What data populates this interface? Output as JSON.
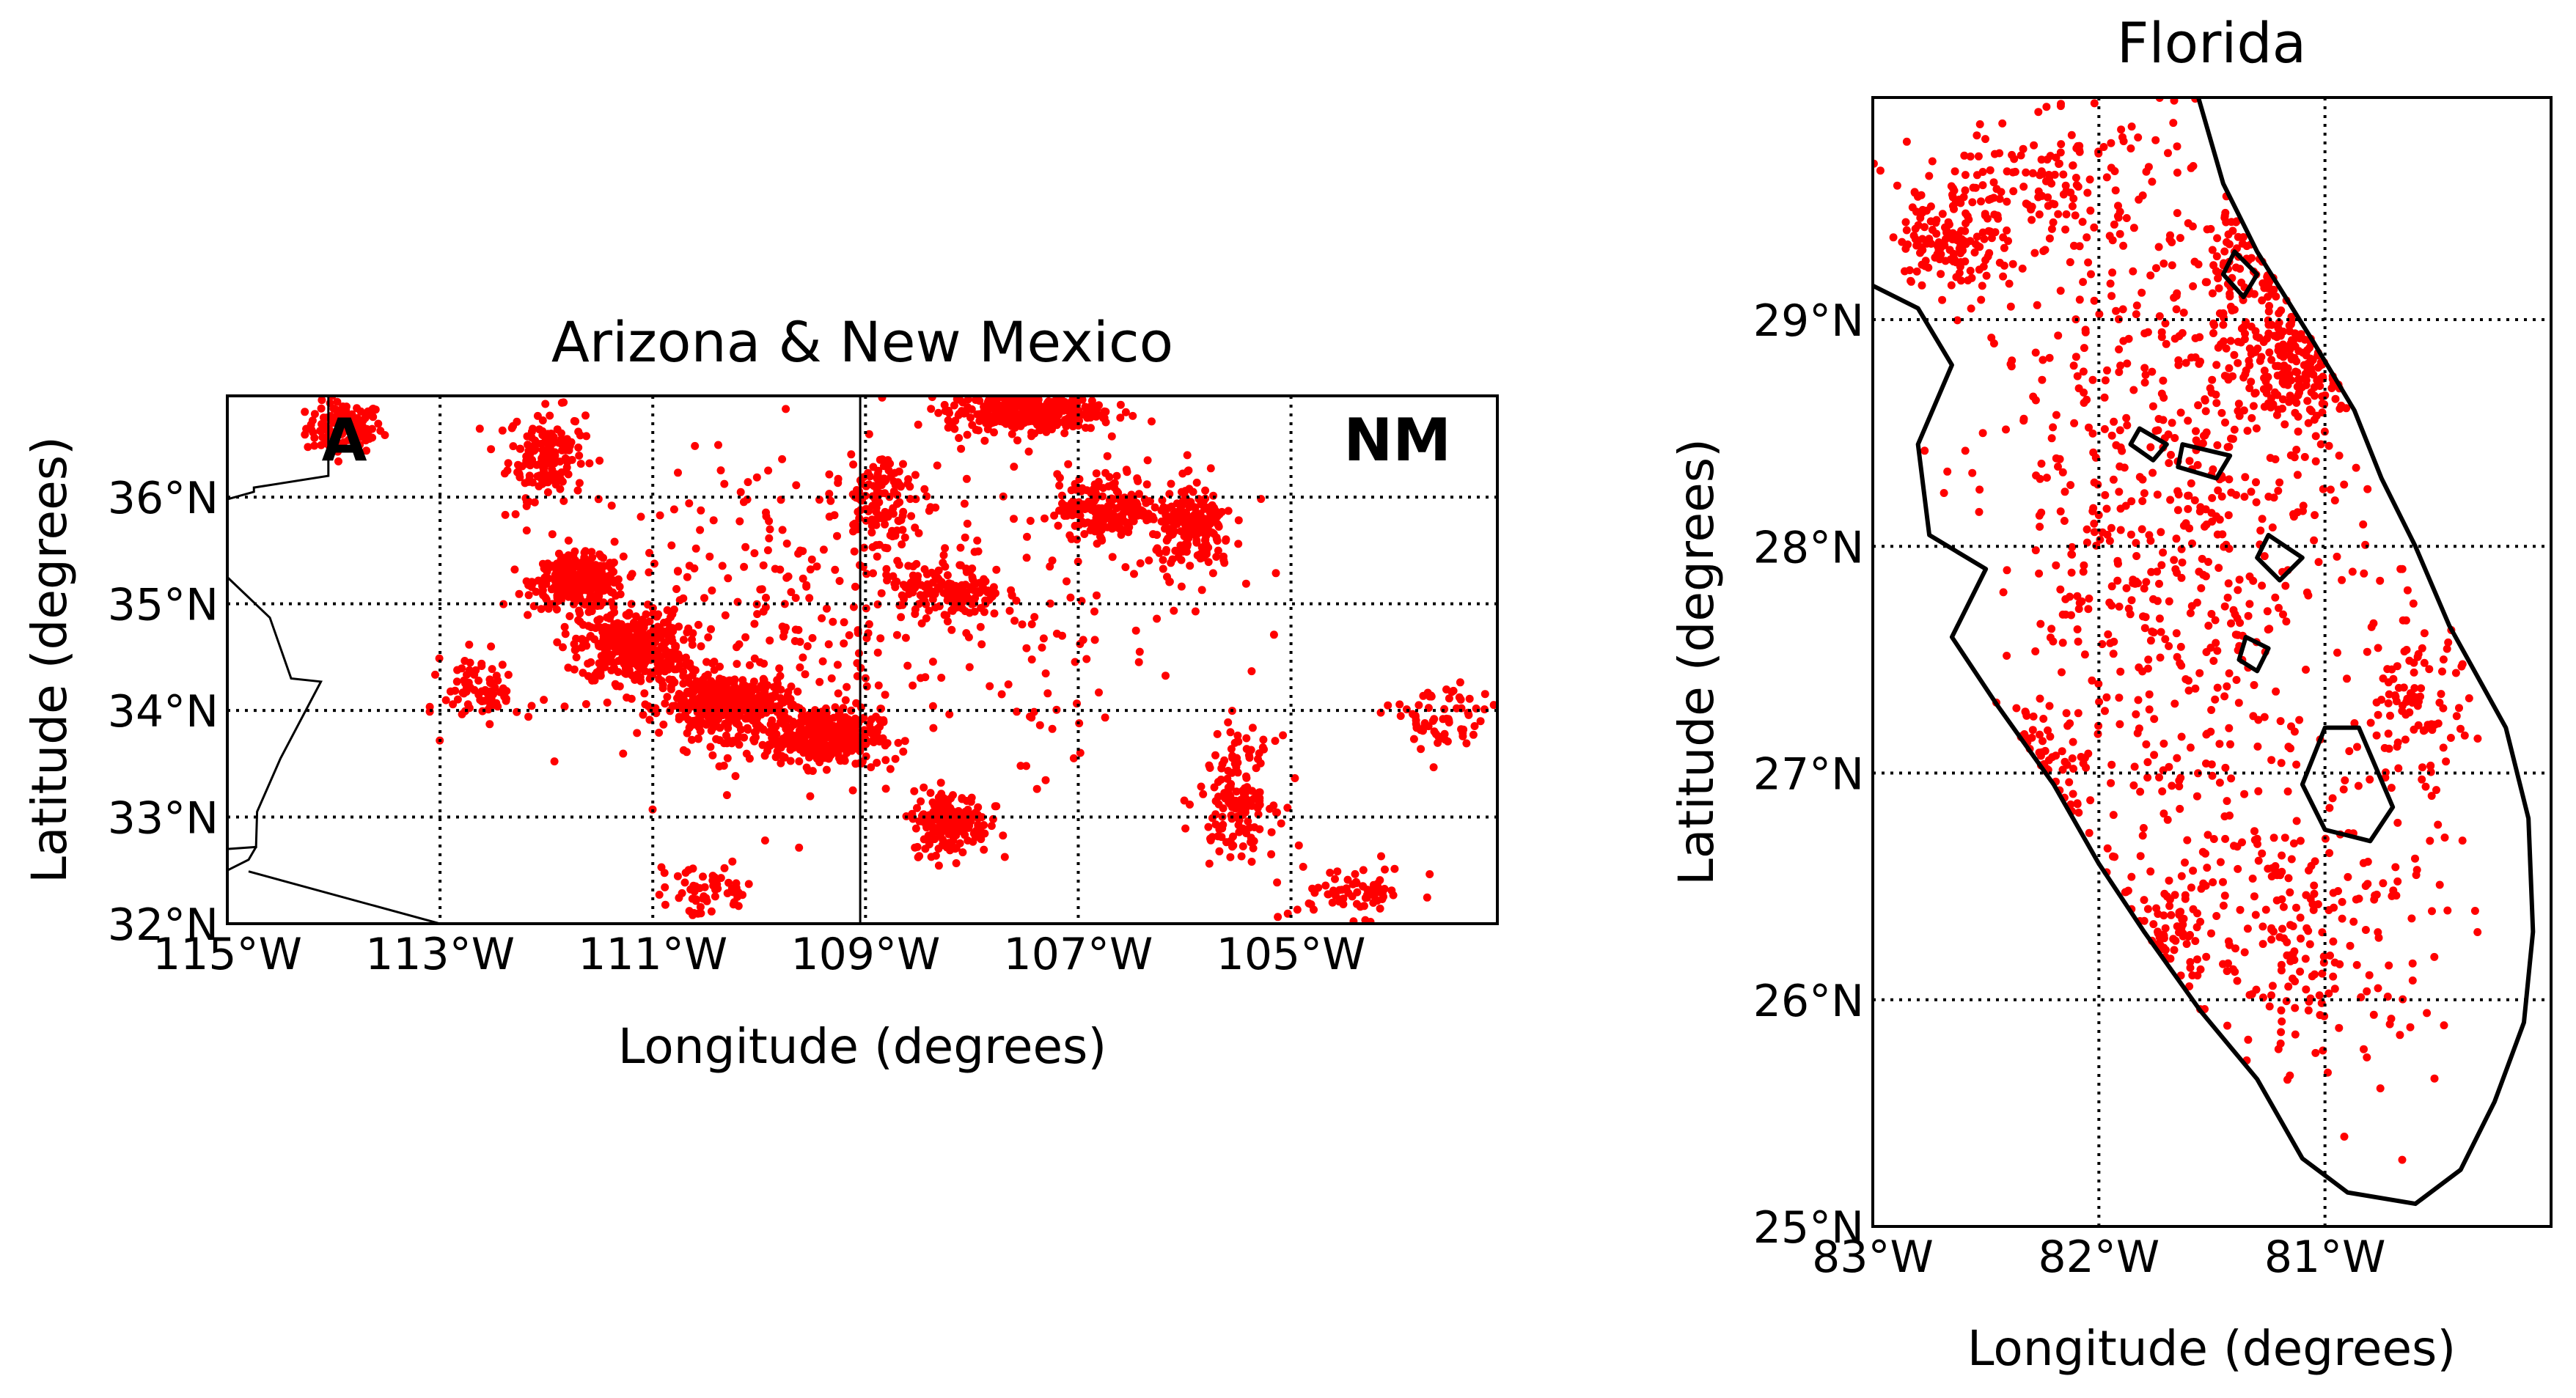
{
  "colors": {
    "points": "#ff0000",
    "frame": "#000000",
    "background": "#ffffff"
  },
  "chart_data": [
    {
      "type": "scatter",
      "title": "Arizona & New Mexico",
      "xlabel": "Longitude (degrees)",
      "ylabel": "Latitude (degrees)",
      "xlim": [
        -115,
        -103.06
      ],
      "ylim": [
        32.0,
        36.95
      ],
      "grid": true,
      "xticks": [
        {
          "value": -115,
          "label": "115°W"
        },
        {
          "value": -113,
          "label": "113°W"
        },
        {
          "value": -111,
          "label": "111°W"
        },
        {
          "value": -109,
          "label": "109°W"
        },
        {
          "value": -107,
          "label": "107°W"
        },
        {
          "value": -105,
          "label": "105°W"
        }
      ],
      "yticks": [
        {
          "value": 32,
          "label": "32°N"
        },
        {
          "value": 33,
          "label": "33°N"
        },
        {
          "value": 34,
          "label": "34°N"
        },
        {
          "value": 35,
          "label": "35°N"
        },
        {
          "value": 36,
          "label": "36°N"
        }
      ],
      "annotations": [
        {
          "text": "A",
          "lon": -113.9,
          "lat": 36.55
        },
        {
          "text": "NM",
          "lon": -104.0,
          "lat": 36.55
        }
      ],
      "borders": [
        [
          [
            -114.05,
            36.95
          ],
          [
            -114.05,
            36.2
          ],
          [
            -114.75,
            36.09
          ],
          [
            -114.75,
            36.05
          ],
          [
            -115.0,
            35.98
          ]
        ],
        [
          [
            -115.0,
            35.25
          ],
          [
            -114.6,
            34.87
          ],
          [
            -114.4,
            34.3
          ],
          [
            -114.12,
            34.27
          ],
          [
            -114.5,
            33.55
          ],
          [
            -114.72,
            33.05
          ],
          [
            -114.73,
            32.72
          ],
          [
            -114.8,
            32.6
          ],
          [
            -115.0,
            32.5
          ]
        ],
        [
          [
            -115.0,
            32.7
          ],
          [
            -114.72,
            32.72
          ]
        ],
        [
          [
            -114.8,
            32.49
          ],
          [
            -113.0,
            32.0
          ]
        ],
        [
          [
            -109.05,
            36.95
          ],
          [
            -109.05,
            32.0
          ]
        ],
        [
          [
            -103.06,
            36.95
          ],
          [
            -103.06,
            32.0
          ]
        ]
      ],
      "clusters": [
        {
          "lon": -113.9,
          "lat": 36.65,
          "slon": 0.3,
          "slat": 0.2,
          "n": 120
        },
        {
          "lon": -112.0,
          "lat": 36.4,
          "slon": 0.3,
          "slat": 0.35,
          "n": 160
        },
        {
          "lon": -111.7,
          "lat": 35.2,
          "slon": 0.35,
          "slat": 0.2,
          "n": 320
        },
        {
          "lon": -111.2,
          "lat": 34.6,
          "slon": 0.4,
          "slat": 0.28,
          "n": 380
        },
        {
          "lon": -110.3,
          "lat": 34.05,
          "slon": 0.5,
          "slat": 0.25,
          "n": 420
        },
        {
          "lon": -109.4,
          "lat": 33.75,
          "slon": 0.45,
          "slat": 0.22,
          "n": 340
        },
        {
          "lon": -108.2,
          "lat": 32.95,
          "slon": 0.3,
          "slat": 0.25,
          "n": 200
        },
        {
          "lon": -107.5,
          "lat": 36.8,
          "slon": 0.6,
          "slat": 0.15,
          "n": 380
        },
        {
          "lon": -106.7,
          "lat": 35.9,
          "slon": 0.4,
          "slat": 0.25,
          "n": 200
        },
        {
          "lon": -108.9,
          "lat": 36.0,
          "slon": 0.25,
          "slat": 0.4,
          "n": 110
        },
        {
          "lon": -108.2,
          "lat": 35.1,
          "slon": 0.4,
          "slat": 0.2,
          "n": 130
        },
        {
          "lon": -105.9,
          "lat": 35.7,
          "slon": 0.3,
          "slat": 0.35,
          "n": 180
        },
        {
          "lon": -105.5,
          "lat": 33.2,
          "slon": 0.3,
          "slat": 0.45,
          "n": 150
        },
        {
          "lon": -104.4,
          "lat": 32.3,
          "slon": 0.5,
          "slat": 0.2,
          "n": 70
        },
        {
          "lon": -103.6,
          "lat": 33.9,
          "slon": 0.4,
          "slat": 0.3,
          "n": 70
        },
        {
          "lon": -110.5,
          "lat": 32.3,
          "slon": 0.4,
          "slat": 0.2,
          "n": 60
        },
        {
          "lon": -112.6,
          "lat": 34.2,
          "slon": 0.3,
          "slat": 0.3,
          "n": 80
        },
        {
          "lon": -109.0,
          "lat": 34.9,
          "slon": 2.5,
          "slat": 1.3,
          "n": 420
        }
      ]
    },
    {
      "type": "scatter",
      "title": "Florida",
      "xlabel": "Longitude (degrees)",
      "ylabel": "Latitude (degrees)",
      "xlim": [
        -83.0,
        -80.0
      ],
      "ylim": [
        25.0,
        29.98
      ],
      "grid": true,
      "xticks": [
        {
          "value": -83,
          "label": "83°W"
        },
        {
          "value": -82,
          "label": "82°W"
        },
        {
          "value": -81,
          "label": "81°W"
        }
      ],
      "yticks": [
        {
          "value": 25,
          "label": "25°N"
        },
        {
          "value": 26,
          "label": "26°N"
        },
        {
          "value": 27,
          "label": "27°N"
        },
        {
          "value": 28,
          "label": "28°N"
        },
        {
          "value": 29,
          "label": "29°N"
        }
      ],
      "coast": [
        [
          -81.56,
          29.98
        ],
        [
          -81.45,
          29.6
        ],
        [
          -81.3,
          29.3
        ],
        [
          -81.05,
          28.9
        ],
        [
          -80.87,
          28.6
        ],
        [
          -80.75,
          28.3
        ],
        [
          -80.6,
          28.0
        ],
        [
          -80.45,
          27.65
        ],
        [
          -80.2,
          27.2
        ],
        [
          -80.1,
          26.8
        ],
        [
          -80.08,
          26.3
        ],
        [
          -80.12,
          25.9
        ],
        [
          -80.25,
          25.55
        ],
        [
          -80.4,
          25.25
        ],
        [
          -80.6,
          25.1
        ],
        [
          -80.9,
          25.15
        ],
        [
          -81.1,
          25.3
        ],
        [
          -81.3,
          25.65
        ],
        [
          -81.55,
          25.95
        ],
        [
          -81.8,
          26.3
        ],
        [
          -82.0,
          26.6
        ],
        [
          -82.2,
          26.95
        ],
        [
          -82.45,
          27.3
        ],
        [
          -82.65,
          27.6
        ],
        [
          -82.5,
          27.9
        ],
        [
          -82.75,
          28.05
        ],
        [
          -82.8,
          28.45
        ],
        [
          -82.65,
          28.8
        ],
        [
          -82.8,
          29.05
        ],
        [
          -83.0,
          29.15
        ]
      ],
      "lakes": [
        [
          [
            -80.85,
            27.2
          ],
          [
            -80.7,
            26.85
          ],
          [
            -80.8,
            26.7
          ],
          [
            -81.0,
            26.75
          ],
          [
            -81.1,
            26.95
          ],
          [
            -81.0,
            27.2
          ]
        ],
        [
          [
            -81.63,
            28.45
          ],
          [
            -81.42,
            28.4
          ],
          [
            -81.48,
            28.3
          ],
          [
            -81.65,
            28.35
          ]
        ],
        [
          [
            -81.82,
            28.52
          ],
          [
            -81.7,
            28.45
          ],
          [
            -81.76,
            28.38
          ],
          [
            -81.86,
            28.45
          ]
        ],
        [
          [
            -81.25,
            28.05
          ],
          [
            -81.1,
            27.95
          ],
          [
            -81.2,
            27.85
          ],
          [
            -81.3,
            27.95
          ]
        ],
        [
          [
            -81.35,
            27.6
          ],
          [
            -81.25,
            27.55
          ],
          [
            -81.3,
            27.45
          ],
          [
            -81.38,
            27.5
          ]
        ],
        [
          [
            -81.4,
            29.3
          ],
          [
            -81.3,
            29.2
          ],
          [
            -81.36,
            29.1
          ],
          [
            -81.45,
            29.2
          ]
        ]
      ],
      "clusters": [
        {
          "lon": -82.65,
          "lat": 29.35,
          "slon": 0.2,
          "slat": 0.2,
          "n": 140
        },
        {
          "lon": -81.25,
          "lat": 29.3,
          "slon": 0.3,
          "slat": 0.4,
          "n": 300
        },
        {
          "lon": -81.1,
          "lat": 28.8,
          "slon": 0.25,
          "slat": 0.2,
          "n": 200
        },
        {
          "lon": -82.3,
          "lat": 27.0,
          "slon": 0.2,
          "slat": 0.2,
          "n": 140
        },
        {
          "lon": -81.75,
          "lat": 26.25,
          "slon": 0.2,
          "slat": 0.2,
          "n": 120
        },
        {
          "lon": -80.6,
          "lat": 27.3,
          "slon": 0.2,
          "slat": 0.3,
          "n": 100
        },
        {
          "lon": -81.7,
          "lat": 28.1,
          "slon": 0.7,
          "slat": 1.3,
          "n": 700
        },
        {
          "lon": -81.1,
          "lat": 26.3,
          "slon": 0.5,
          "slat": 0.6,
          "n": 250
        },
        {
          "lon": -82.3,
          "lat": 29.6,
          "slon": 0.5,
          "slat": 0.25,
          "n": 150
        }
      ]
    }
  ]
}
